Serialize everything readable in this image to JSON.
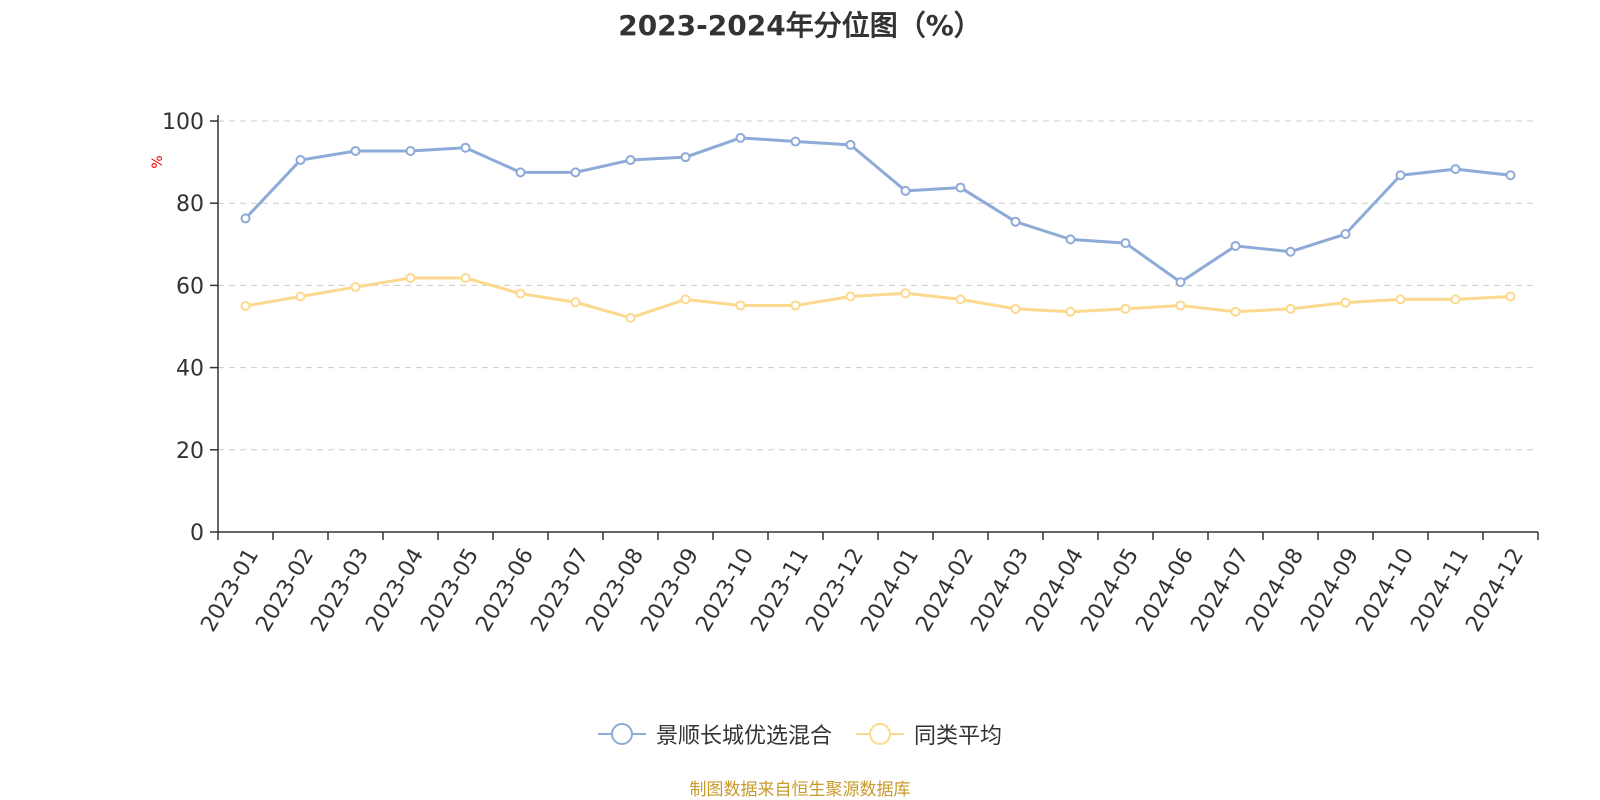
{
  "chart_data": {
    "type": "line",
    "title": "2023-2024年分位图（%）",
    "ylabel": "%",
    "xlabel": "",
    "ylim": [
      0,
      100
    ],
    "yticks": [
      0,
      20,
      40,
      60,
      80,
      100
    ],
    "grid": true,
    "legend_position": "bottom",
    "categories": [
      "2023-01",
      "2023-02",
      "2023-03",
      "2023-04",
      "2023-05",
      "2023-06",
      "2023-07",
      "2023-08",
      "2023-09",
      "2023-10",
      "2023-11",
      "2023-12",
      "2024-01",
      "2024-02",
      "2024-03",
      "2024-04",
      "2024-05",
      "2024-06",
      "2024-07",
      "2024-08",
      "2024-09",
      "2024-10",
      "2024-11",
      "2024-12"
    ],
    "series": [
      {
        "name": "景顺长城优选混合",
        "color": "#8eabd8",
        "values": [
          76.3,
          90.5,
          92.7,
          92.7,
          93.5,
          87.5,
          87.5,
          90.5,
          91.2,
          95.9,
          95.0,
          94.2,
          83.0,
          83.8,
          75.5,
          71.2,
          70.3,
          60.8,
          69.6,
          68.2,
          72.5,
          86.8,
          88.3,
          86.8
        ]
      },
      {
        "name": "同类平均",
        "color": "#fcd98e",
        "values": [
          55.0,
          57.3,
          59.6,
          61.8,
          61.8,
          58.0,
          55.9,
          52.1,
          56.6,
          55.1,
          55.1,
          57.3,
          58.1,
          56.6,
          54.3,
          53.6,
          54.3,
          55.1,
          53.6,
          54.3,
          55.8,
          56.6,
          56.6,
          57.3
        ]
      }
    ],
    "source": "制图数据来自恒生聚源数据库"
  }
}
